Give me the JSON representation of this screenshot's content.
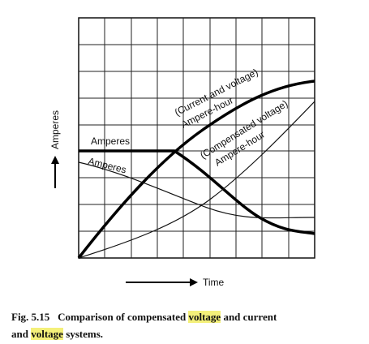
{
  "figure": {
    "y_label": "Amperes",
    "x_label": "Time",
    "curve_labels": [
      "Amperes",
      "Amperes",
      "(Current and voltage)",
      "Ampere-hour",
      "(Compensated voltage)",
      "Ampere-hour"
    ],
    "caption": {
      "number": "Fig. 5.15",
      "parts": [
        "Comparison of compensated",
        "voltage",
        "and current",
        "and",
        "voltage",
        "systems."
      ]
    }
  }
}
